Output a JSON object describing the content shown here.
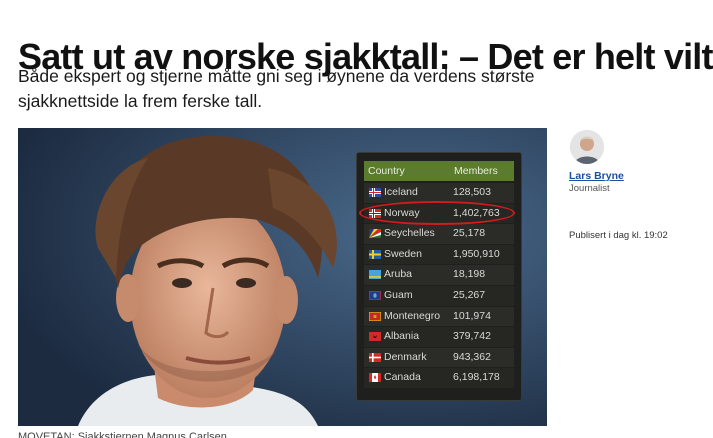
{
  "article": {
    "headline": "Satt ut av norske sjakktall: – Det er helt vilt",
    "lead": "Både ekspert og stjerne måtte gni seg i øynene da verdens største sjakknettside la frem ferske tall.",
    "caption": "MOVETAN: Sjakkstjernen Magnus Carlsen"
  },
  "table": {
    "header": {
      "country": "Country",
      "members": "Members"
    },
    "rows": [
      {
        "country": "Iceland",
        "members": "128,503",
        "flag": "iceland-flag-icon"
      },
      {
        "country": "Norway",
        "members": "1,402,763",
        "flag": "norway-flag-icon"
      },
      {
        "country": "Seychelles",
        "members": "25,178",
        "flag": "seychelles-flag-icon"
      },
      {
        "country": "Sweden",
        "members": "1,950,910",
        "flag": "sweden-flag-icon"
      },
      {
        "country": "Aruba",
        "members": "18,198",
        "flag": "aruba-flag-icon"
      },
      {
        "country": "Guam",
        "members": "25,267",
        "flag": "guam-flag-icon"
      },
      {
        "country": "Montenegro",
        "members": "101,974",
        "flag": "montenegro-flag-icon"
      },
      {
        "country": "Albania",
        "members": "379,742",
        "flag": "albania-flag-icon"
      },
      {
        "country": "Denmark",
        "members": "943,362",
        "flag": "denmark-flag-icon"
      },
      {
        "country": "Canada",
        "members": "6,198,178",
        "flag": "canada-flag-icon"
      }
    ],
    "highlight_color": "#d01c1c",
    "header_color": "#5b7b2e"
  },
  "byline": {
    "author": "Lars Bryne",
    "role": "Journalist",
    "published": "Publisert i dag kl. 19:02"
  }
}
